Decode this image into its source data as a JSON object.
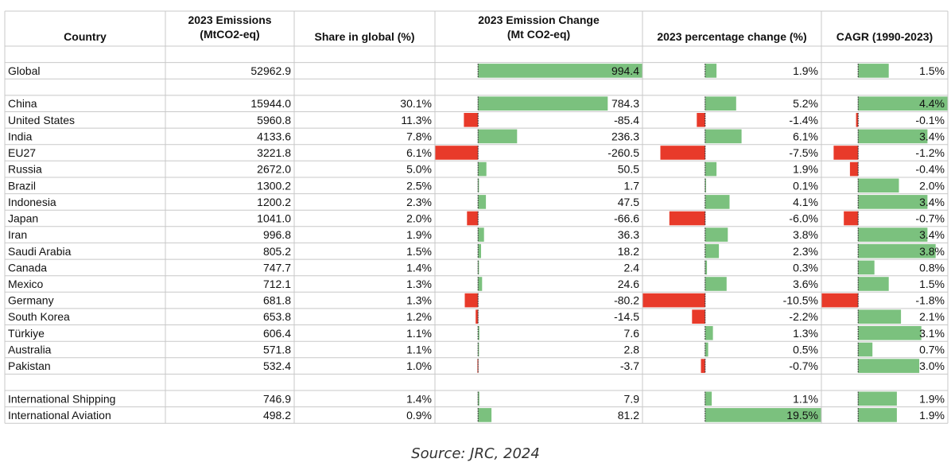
{
  "chart_data": {
    "type": "table",
    "columns": [
      {
        "key": "country",
        "label": [
          "Country"
        ]
      },
      {
        "key": "emissions",
        "label": [
          "2023 Emissions",
          "(MtCO2-eq)"
        ]
      },
      {
        "key": "share",
        "label": [
          "Share in global (%)"
        ]
      },
      {
        "key": "change",
        "label": [
          "2023 Emission Change",
          "(Mt CO2-eq)"
        ]
      },
      {
        "key": "pct",
        "label": [
          "2023 percentage change (%)"
        ]
      },
      {
        "key": "cagr",
        "label": [
          "CAGR (1990-2023)"
        ]
      }
    ],
    "rows": [
      {
        "type": "blank"
      },
      {
        "type": "data",
        "country": "Global",
        "emissions": "52962.9",
        "share": "",
        "change": "994.4",
        "change_value": 994.4,
        "pct": "1.9%",
        "pct_value": 1.9,
        "cagr": "1.5%",
        "cagr_value": 1.5
      },
      {
        "type": "blank"
      },
      {
        "type": "data",
        "country": "China",
        "emissions": "15944.0",
        "share": "30.1%",
        "change": "784.3",
        "change_value": 784.3,
        "pct": "5.2%",
        "pct_value": 5.2,
        "cagr": "4.4%",
        "cagr_value": 4.4
      },
      {
        "type": "data",
        "country": "United States",
        "emissions": "5960.8",
        "share": "11.3%",
        "change": "-85.4",
        "change_value": -85.4,
        "pct": "-1.4%",
        "pct_value": -1.4,
        "cagr": "-0.1%",
        "cagr_value": -0.1
      },
      {
        "type": "data",
        "country": "India",
        "emissions": "4133.6",
        "share": "7.8%",
        "change": "236.3",
        "change_value": 236.3,
        "pct": "6.1%",
        "pct_value": 6.1,
        "cagr": "3.4%",
        "cagr_value": 3.4
      },
      {
        "type": "data",
        "country": "EU27",
        "emissions": "3221.8",
        "share": "6.1%",
        "change": "-260.5",
        "change_value": -260.5,
        "pct": "-7.5%",
        "pct_value": -7.5,
        "cagr": "-1.2%",
        "cagr_value": -1.2
      },
      {
        "type": "data",
        "country": "Russia",
        "emissions": "2672.0",
        "share": "5.0%",
        "change": "50.5",
        "change_value": 50.5,
        "pct": "1.9%",
        "pct_value": 1.9,
        "cagr": "-0.4%",
        "cagr_value": -0.4
      },
      {
        "type": "data",
        "country": "Brazil",
        "emissions": "1300.2",
        "share": "2.5%",
        "change": "1.7",
        "change_value": 1.7,
        "pct": "0.1%",
        "pct_value": 0.1,
        "cagr": "2.0%",
        "cagr_value": 2.0
      },
      {
        "type": "data",
        "country": "Indonesia",
        "emissions": "1200.2",
        "share": "2.3%",
        "change": "47.5",
        "change_value": 47.5,
        "pct": "4.1%",
        "pct_value": 4.1,
        "cagr": "3.4%",
        "cagr_value": 3.4
      },
      {
        "type": "data",
        "country": "Japan",
        "emissions": "1041.0",
        "share": "2.0%",
        "change": "-66.6",
        "change_value": -66.6,
        "pct": "-6.0%",
        "pct_value": -6.0,
        "cagr": "-0.7%",
        "cagr_value": -0.7
      },
      {
        "type": "data",
        "country": "Iran",
        "emissions": "996.8",
        "share": "1.9%",
        "change": "36.3",
        "change_value": 36.3,
        "pct": "3.8%",
        "pct_value": 3.8,
        "cagr": "3.4%",
        "cagr_value": 3.4
      },
      {
        "type": "data",
        "country": "Saudi Arabia",
        "emissions": "805.2",
        "share": "1.5%",
        "change": "18.2",
        "change_value": 18.2,
        "pct": "2.3%",
        "pct_value": 2.3,
        "cagr": "3.8%",
        "cagr_value": 3.8
      },
      {
        "type": "data",
        "country": "Canada",
        "emissions": "747.7",
        "share": "1.4%",
        "change": "2.4",
        "change_value": 2.4,
        "pct": "0.3%",
        "pct_value": 0.3,
        "cagr": "0.8%",
        "cagr_value": 0.8
      },
      {
        "type": "data",
        "country": "Mexico",
        "emissions": "712.1",
        "share": "1.3%",
        "change": "24.6",
        "change_value": 24.6,
        "pct": "3.6%",
        "pct_value": 3.6,
        "cagr": "1.5%",
        "cagr_value": 1.5
      },
      {
        "type": "data",
        "country": "Germany",
        "emissions": "681.8",
        "share": "1.3%",
        "change": "-80.2",
        "change_value": -80.2,
        "pct": "-10.5%",
        "pct_value": -10.5,
        "cagr": "-1.8%",
        "cagr_value": -1.8
      },
      {
        "type": "data",
        "country": "South Korea",
        "emissions": "653.8",
        "share": "1.2%",
        "change": "-14.5",
        "change_value": -14.5,
        "pct": "-2.2%",
        "pct_value": -2.2,
        "cagr": "2.1%",
        "cagr_value": 2.1
      },
      {
        "type": "data",
        "country": "Türkiye",
        "emissions": "606.4",
        "share": "1.1%",
        "change": "7.6",
        "change_value": 7.6,
        "pct": "1.3%",
        "pct_value": 1.3,
        "cagr": "3.1%",
        "cagr_value": 3.1
      },
      {
        "type": "data",
        "country": "Australia",
        "emissions": "571.8",
        "share": "1.1%",
        "change": "2.8",
        "change_value": 2.8,
        "pct": "0.5%",
        "pct_value": 0.5,
        "cagr": "0.7%",
        "cagr_value": 0.7
      },
      {
        "type": "data",
        "country": "Pakistan",
        "emissions": "532.4",
        "share": "1.0%",
        "change": "-3.7",
        "change_value": -3.7,
        "pct": "-0.7%",
        "pct_value": -0.7,
        "cagr": "3.0%",
        "cagr_value": 3.0
      },
      {
        "type": "blank"
      },
      {
        "type": "data",
        "country": "International Shipping",
        "emissions": "746.9",
        "share": "1.4%",
        "change": "7.9",
        "change_value": 7.9,
        "pct": "1.1%",
        "pct_value": 1.1,
        "cagr": "1.9%",
        "cagr_value": 1.9
      },
      {
        "type": "data",
        "country": "International Aviation",
        "emissions": "498.2",
        "share": "0.9%",
        "change": "81.2",
        "change_value": 81.2,
        "pct": "19.5%",
        "pct_value": 19.5,
        "cagr": "1.9%",
        "cagr_value": 1.9
      }
    ],
    "data_bar_scales": {
      "change": [
        -260.5,
        994.4
      ],
      "pct": [
        -10.5,
        19.5
      ],
      "cagr": [
        -1.8,
        4.4
      ]
    },
    "colors": {
      "positive_bar": "#7bc17e",
      "negative_bar": "#e83a2a",
      "grid": "#c8c8c8",
      "axis": "#333333"
    }
  },
  "source_note": "Source: JRC, 2024"
}
